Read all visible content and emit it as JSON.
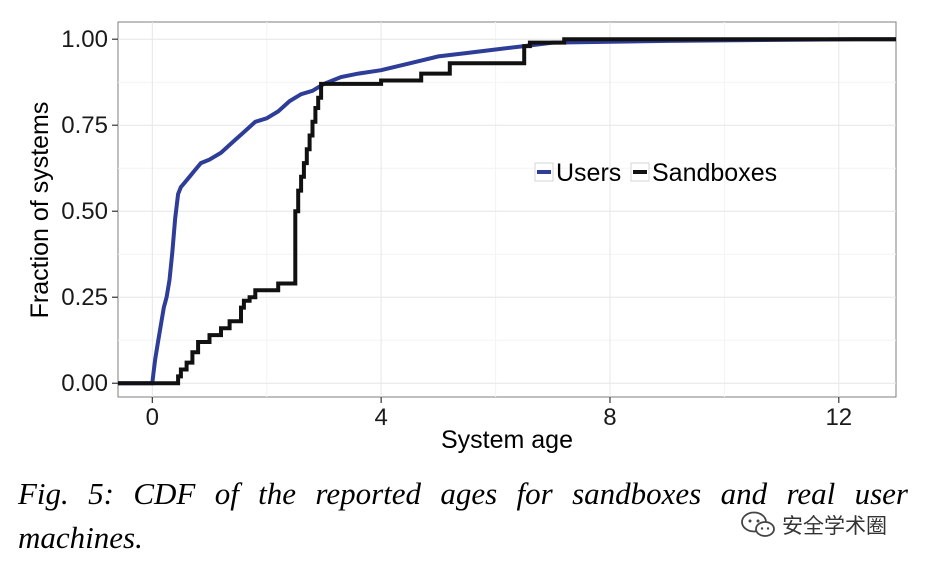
{
  "chart_data": {
    "type": "line",
    "title": "",
    "xlabel": "System age",
    "ylabel": "Fraction of systems",
    "xlim": [
      -0.6,
      13
    ],
    "ylim": [
      -0.04,
      1.05
    ],
    "x_ticks": [
      0,
      4,
      8,
      12
    ],
    "y_ticks": [
      0,
      0.25,
      0.5,
      0.75,
      1.0
    ],
    "x_tick_labels": [
      "0",
      "4",
      "8",
      "12"
    ],
    "y_tick_labels": [
      "0.00",
      "0.25",
      "0.50",
      "0.75",
      "1.00"
    ],
    "grid": true,
    "legend": {
      "placement": "right-middle",
      "orientation": "horizontal"
    },
    "series": [
      {
        "name": "Users",
        "color": "#2E3D97",
        "points": [
          [
            -0.6,
            0
          ],
          [
            0,
            0
          ],
          [
            0.02,
            0.03
          ],
          [
            0.05,
            0.07
          ],
          [
            0.1,
            0.12
          ],
          [
            0.15,
            0.17
          ],
          [
            0.2,
            0.22
          ],
          [
            0.25,
            0.25
          ],
          [
            0.3,
            0.3
          ],
          [
            0.35,
            0.38
          ],
          [
            0.4,
            0.48
          ],
          [
            0.45,
            0.55
          ],
          [
            0.5,
            0.57
          ],
          [
            0.55,
            0.58
          ],
          [
            0.65,
            0.6
          ],
          [
            0.75,
            0.62
          ],
          [
            0.85,
            0.64
          ],
          [
            1.0,
            0.65
          ],
          [
            1.2,
            0.67
          ],
          [
            1.4,
            0.7
          ],
          [
            1.6,
            0.73
          ],
          [
            1.8,
            0.76
          ],
          [
            2.0,
            0.77
          ],
          [
            2.2,
            0.79
          ],
          [
            2.4,
            0.82
          ],
          [
            2.6,
            0.84
          ],
          [
            2.8,
            0.85
          ],
          [
            3.0,
            0.87
          ],
          [
            3.3,
            0.89
          ],
          [
            3.6,
            0.9
          ],
          [
            4.0,
            0.91
          ],
          [
            4.5,
            0.93
          ],
          [
            5.0,
            0.95
          ],
          [
            5.5,
            0.96
          ],
          [
            6.0,
            0.97
          ],
          [
            6.5,
            0.98
          ],
          [
            7.0,
            0.99
          ],
          [
            9.0,
            0.995
          ],
          [
            12.3,
            1.0
          ],
          [
            13,
            1.0
          ]
        ]
      },
      {
        "name": "Sandboxes",
        "color": "#111111",
        "points": [
          [
            -0.6,
            0
          ],
          [
            0.45,
            0
          ],
          [
            0.45,
            0.02
          ],
          [
            0.5,
            0.02
          ],
          [
            0.5,
            0.04
          ],
          [
            0.6,
            0.04
          ],
          [
            0.6,
            0.06
          ],
          [
            0.7,
            0.06
          ],
          [
            0.7,
            0.09
          ],
          [
            0.8,
            0.09
          ],
          [
            0.8,
            0.12
          ],
          [
            1.0,
            0.12
          ],
          [
            1.0,
            0.14
          ],
          [
            1.2,
            0.14
          ],
          [
            1.2,
            0.16
          ],
          [
            1.35,
            0.16
          ],
          [
            1.35,
            0.18
          ],
          [
            1.55,
            0.18
          ],
          [
            1.55,
            0.22
          ],
          [
            1.6,
            0.22
          ],
          [
            1.6,
            0.24
          ],
          [
            1.7,
            0.24
          ],
          [
            1.7,
            0.25
          ],
          [
            1.8,
            0.25
          ],
          [
            1.8,
            0.27
          ],
          [
            2.2,
            0.27
          ],
          [
            2.2,
            0.29
          ],
          [
            2.5,
            0.29
          ],
          [
            2.5,
            0.5
          ],
          [
            2.55,
            0.5
          ],
          [
            2.55,
            0.56
          ],
          [
            2.6,
            0.56
          ],
          [
            2.6,
            0.6
          ],
          [
            2.65,
            0.6
          ],
          [
            2.65,
            0.64
          ],
          [
            2.7,
            0.64
          ],
          [
            2.7,
            0.68
          ],
          [
            2.75,
            0.68
          ],
          [
            2.75,
            0.72
          ],
          [
            2.8,
            0.72
          ],
          [
            2.8,
            0.76
          ],
          [
            2.85,
            0.76
          ],
          [
            2.85,
            0.8
          ],
          [
            2.9,
            0.8
          ],
          [
            2.9,
            0.83
          ],
          [
            2.95,
            0.83
          ],
          [
            2.95,
            0.87
          ],
          [
            4.0,
            0.87
          ],
          [
            4.0,
            0.88
          ],
          [
            4.7,
            0.88
          ],
          [
            4.7,
            0.9
          ],
          [
            5.2,
            0.9
          ],
          [
            5.2,
            0.93
          ],
          [
            6.5,
            0.93
          ],
          [
            6.5,
            0.98
          ],
          [
            6.6,
            0.98
          ],
          [
            6.6,
            0.99
          ],
          [
            7.2,
            0.99
          ],
          [
            7.2,
            1.0
          ],
          [
            13,
            1.0
          ]
        ]
      }
    ]
  },
  "caption": "Fig. 5: CDF of the reported ages for sandboxes and real user machines.",
  "watermark": {
    "text": "安全学术圈",
    "icon": "wechat-bubble-icon"
  }
}
